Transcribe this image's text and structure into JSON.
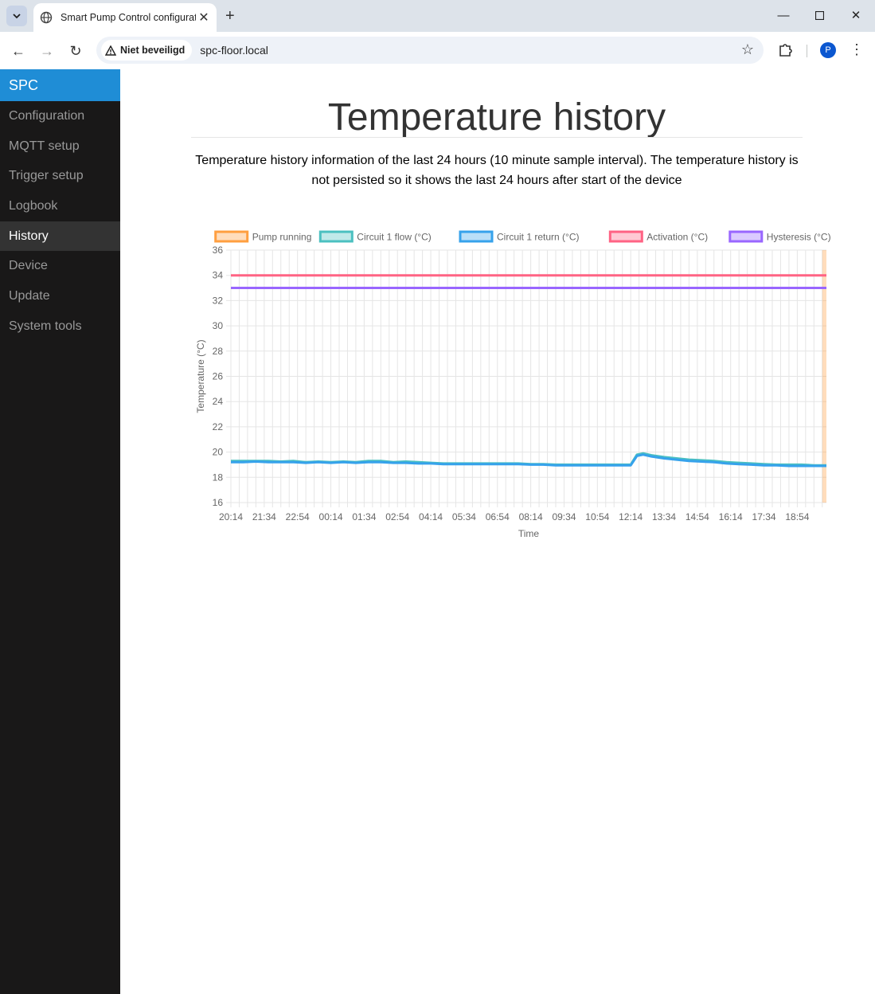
{
  "browser": {
    "tab_title": "Smart Pump Control configuration",
    "security_label": "Niet beveiligd",
    "url": "spc-floor.local",
    "profile_initial": "P"
  },
  "sidebar": {
    "brand": "SPC",
    "items": [
      {
        "label": "Configuration",
        "active": false
      },
      {
        "label": "MQTT setup",
        "active": false
      },
      {
        "label": "Trigger setup",
        "active": false
      },
      {
        "label": "Logbook",
        "active": false
      },
      {
        "label": "History",
        "active": true
      },
      {
        "label": "Device",
        "active": false
      },
      {
        "label": "Update",
        "active": false
      },
      {
        "label": "System tools",
        "active": false
      }
    ]
  },
  "main": {
    "title": "Temperature history",
    "description": "Temperature history information of the last 24 hours (10 minute sample interval). The temperature history is not persisted so it shows the last 24 hours after start of the device"
  },
  "chart_data": {
    "type": "line",
    "xlabel": "Time",
    "ylabel": "Temperature (°C)",
    "ylim": [
      16,
      36
    ],
    "y_ticks": [
      16,
      18,
      20,
      22,
      24,
      26,
      28,
      30,
      32,
      34,
      36
    ],
    "x_ticks": [
      "20:14",
      "21:34",
      "22:54",
      "00:14",
      "01:34",
      "02:54",
      "04:14",
      "05:34",
      "06:54",
      "08:14",
      "09:34",
      "10:54",
      "12:14",
      "13:34",
      "14:54",
      "16:14",
      "17:34",
      "18:54"
    ],
    "x_range_minutes": [
      0,
      1430
    ],
    "x_tick_step_minutes": 80,
    "grid": true,
    "legend_position": "top",
    "series": [
      {
        "name": "Pump running",
        "color": "#ff9f40",
        "kind": "band",
        "on_intervals": [
          [
            1420,
            1430
          ]
        ]
      },
      {
        "name": "Circuit 1 flow (°C)",
        "color": "#4bc0c0",
        "points": [
          [
            0,
            19.3
          ],
          [
            30,
            19.3
          ],
          [
            60,
            19.3
          ],
          [
            90,
            19.3
          ],
          [
            120,
            19.25
          ],
          [
            150,
            19.3
          ],
          [
            180,
            19.2
          ],
          [
            210,
            19.25
          ],
          [
            240,
            19.2
          ],
          [
            270,
            19.25
          ],
          [
            300,
            19.2
          ],
          [
            330,
            19.3
          ],
          [
            360,
            19.3
          ],
          [
            390,
            19.2
          ],
          [
            420,
            19.25
          ],
          [
            450,
            19.2
          ],
          [
            480,
            19.15
          ],
          [
            510,
            19.1
          ],
          [
            540,
            19.1
          ],
          [
            570,
            19.1
          ],
          [
            600,
            19.1
          ],
          [
            630,
            19.1
          ],
          [
            660,
            19.1
          ],
          [
            690,
            19.1
          ],
          [
            720,
            19.05
          ],
          [
            750,
            19.05
          ],
          [
            780,
            19.0
          ],
          [
            810,
            19.0
          ],
          [
            840,
            19.0
          ],
          [
            870,
            19.0
          ],
          [
            900,
            19.0
          ],
          [
            930,
            19.0
          ],
          [
            960,
            19.0
          ],
          [
            975,
            19.8
          ],
          [
            990,
            19.9
          ],
          [
            1010,
            19.75
          ],
          [
            1040,
            19.6
          ],
          [
            1070,
            19.5
          ],
          [
            1100,
            19.4
          ],
          [
            1130,
            19.35
          ],
          [
            1160,
            19.3
          ],
          [
            1190,
            19.2
          ],
          [
            1220,
            19.15
          ],
          [
            1250,
            19.1
          ],
          [
            1280,
            19.05
          ],
          [
            1310,
            19.0
          ],
          [
            1340,
            19.0
          ],
          [
            1370,
            19.0
          ],
          [
            1400,
            18.95
          ],
          [
            1430,
            18.95
          ]
        ]
      },
      {
        "name": "Circuit 1 return (°C)",
        "color": "#36a2eb",
        "points": [
          [
            0,
            19.2
          ],
          [
            30,
            19.2
          ],
          [
            60,
            19.25
          ],
          [
            90,
            19.2
          ],
          [
            120,
            19.2
          ],
          [
            150,
            19.2
          ],
          [
            180,
            19.15
          ],
          [
            210,
            19.2
          ],
          [
            240,
            19.15
          ],
          [
            270,
            19.2
          ],
          [
            300,
            19.15
          ],
          [
            330,
            19.2
          ],
          [
            360,
            19.2
          ],
          [
            390,
            19.15
          ],
          [
            420,
            19.15
          ],
          [
            450,
            19.1
          ],
          [
            480,
            19.1
          ],
          [
            510,
            19.05
          ],
          [
            540,
            19.05
          ],
          [
            570,
            19.05
          ],
          [
            600,
            19.05
          ],
          [
            630,
            19.05
          ],
          [
            660,
            19.05
          ],
          [
            690,
            19.05
          ],
          [
            720,
            19.0
          ],
          [
            750,
            19.0
          ],
          [
            780,
            18.95
          ],
          [
            810,
            18.95
          ],
          [
            840,
            18.95
          ],
          [
            870,
            18.95
          ],
          [
            900,
            18.95
          ],
          [
            930,
            18.95
          ],
          [
            960,
            18.95
          ],
          [
            975,
            19.7
          ],
          [
            990,
            19.8
          ],
          [
            1010,
            19.65
          ],
          [
            1040,
            19.5
          ],
          [
            1070,
            19.4
          ],
          [
            1100,
            19.3
          ],
          [
            1130,
            19.25
          ],
          [
            1160,
            19.2
          ],
          [
            1190,
            19.1
          ],
          [
            1220,
            19.05
          ],
          [
            1250,
            19.0
          ],
          [
            1280,
            18.95
          ],
          [
            1310,
            18.95
          ],
          [
            1340,
            18.9
          ],
          [
            1370,
            18.9
          ],
          [
            1400,
            18.9
          ],
          [
            1430,
            18.9
          ]
        ]
      },
      {
        "name": "Activation (°C)",
        "color": "#ff6384",
        "constant": 34
      },
      {
        "name": "Hysteresis (°C)",
        "color": "#9966ff",
        "constant": 33
      }
    ]
  }
}
